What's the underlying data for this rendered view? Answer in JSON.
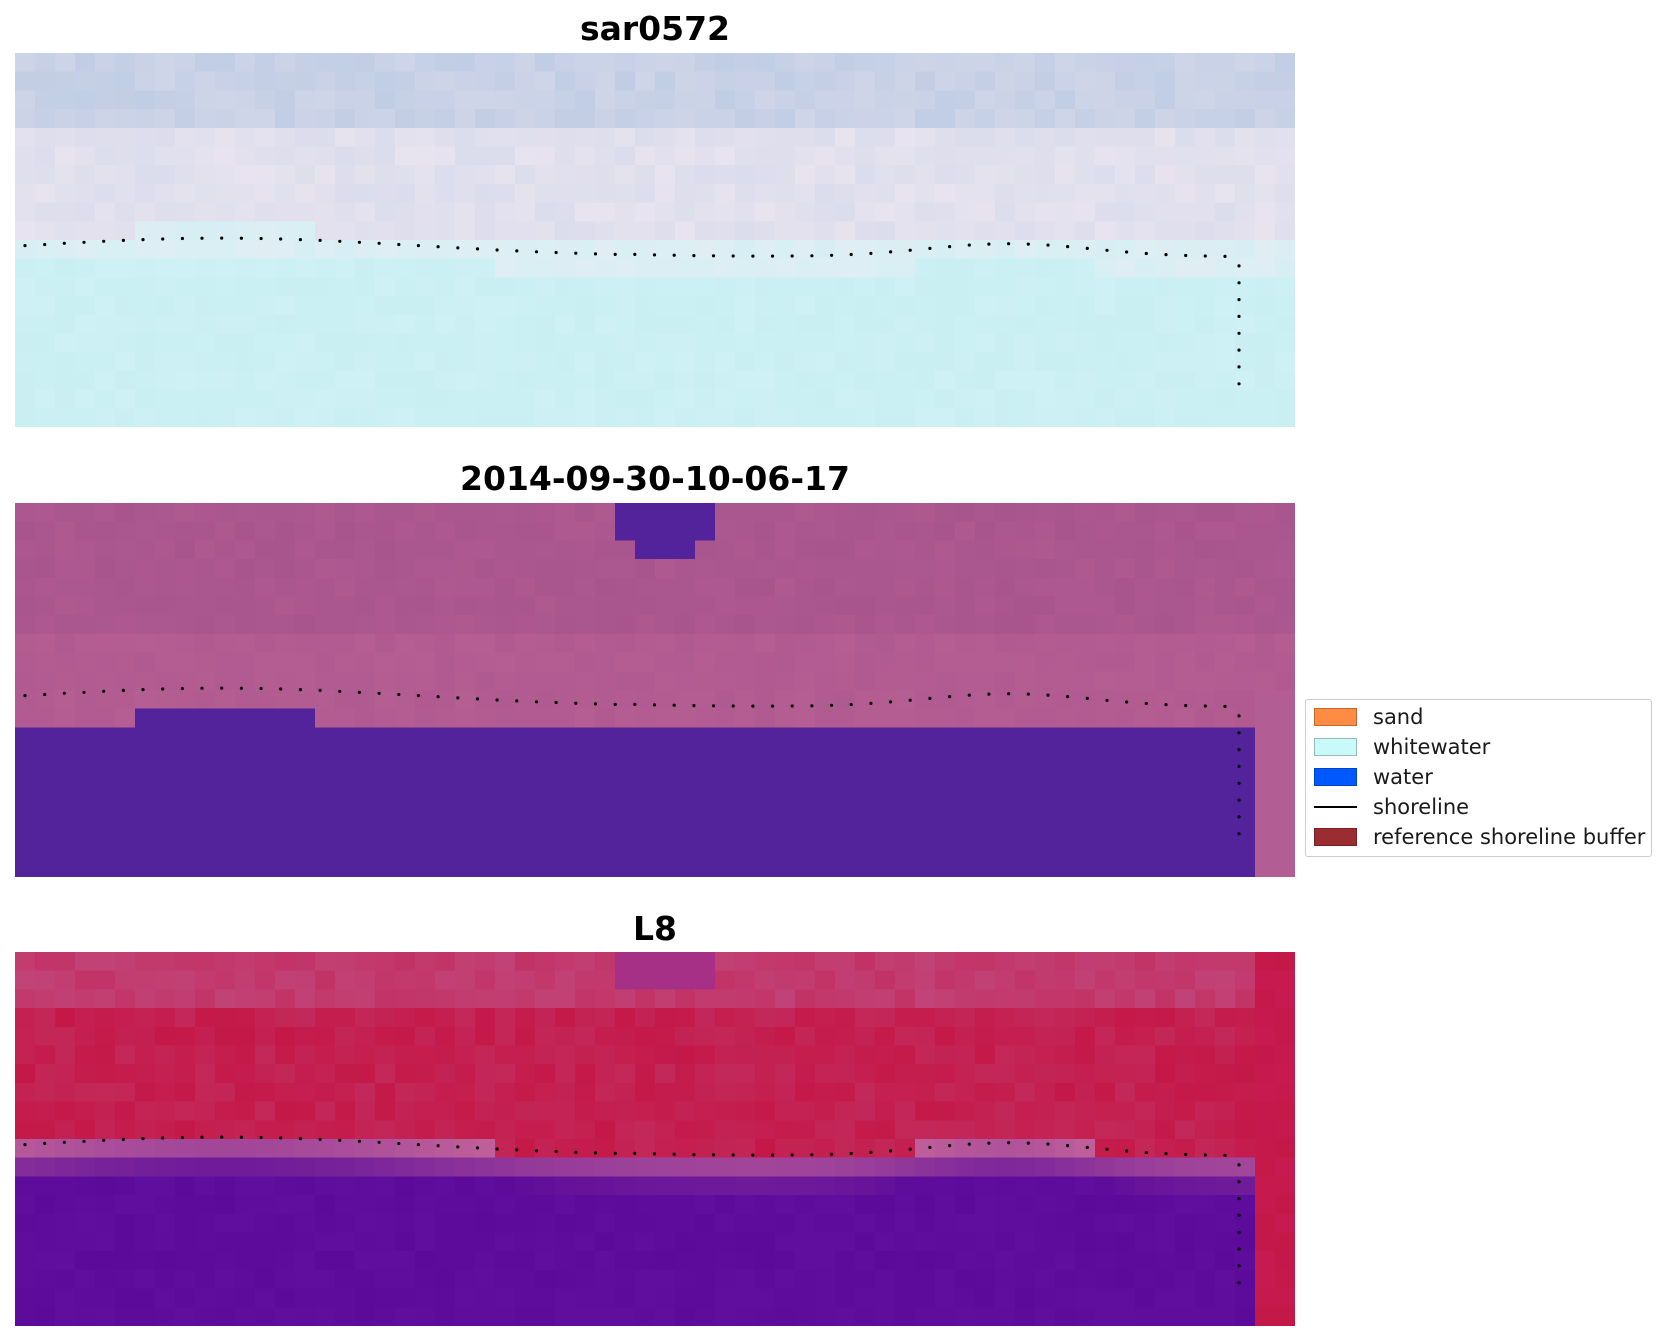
{
  "panels": [
    {
      "title": "sar0572",
      "style": "rgb"
    },
    {
      "title": "2014-09-30-10-06-17",
      "style": "classified"
    },
    {
      "title": "L8",
      "style": "index"
    }
  ],
  "legend": {
    "items": [
      {
        "label": "sand",
        "kind": "patch",
        "color": "#ff8c42"
      },
      {
        "label": "whitewater",
        "kind": "patch",
        "color": "#c8fafa"
      },
      {
        "label": "water",
        "kind": "patch",
        "color": "#0059ff"
      },
      {
        "label": "shoreline",
        "kind": "line",
        "color": "#000000"
      },
      {
        "label": "reference shoreline buffer",
        "kind": "patch",
        "color": "#9b2d30"
      }
    ]
  },
  "colors": {
    "rgb_sky": "#b8c8e2",
    "rgb_foam": "#f3eaf3",
    "rgb_water": "#cdf1f4",
    "classified_background": "#a8558e",
    "classified_water": "#52239a",
    "index_land": "#c41848",
    "index_water": "#5c0a9a",
    "shoreline_dots": "#000000"
  }
}
